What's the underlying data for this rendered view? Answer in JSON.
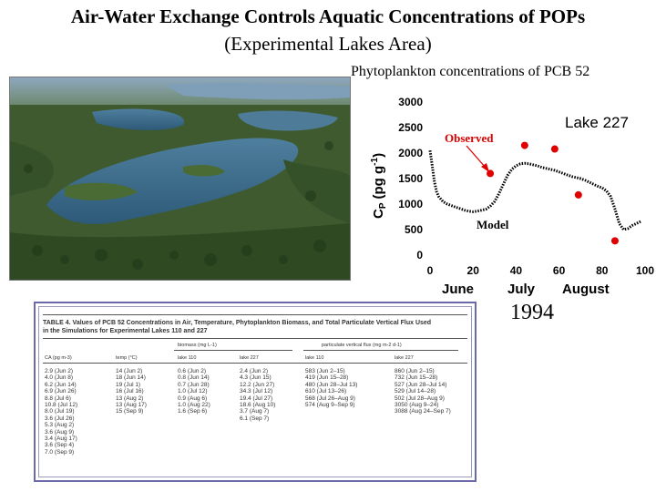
{
  "page": {
    "title": "Air-Water Exchange Controls Aquatic Concentrations of POPs",
    "subtitle": "(Experimental Lakes Area)"
  },
  "colors": {
    "accent_red": "#e00000",
    "table_border": "#6a6aa8"
  },
  "chart_data": {
    "type": "scatter",
    "caption": "Phytoplankton concentrations of PCB 52",
    "title": "Lake 227",
    "ylabel": "CP (pg g-1)",
    "ylabel_main": "C",
    "ylabel_sub": "P",
    "ylabel_unit": "(pg g",
    "ylabel_sup": "-1",
    "ylabel_close": ")",
    "xlim": [
      0,
      100
    ],
    "ylim": [
      0,
      3000
    ],
    "xticks": [
      "0",
      "20",
      "40",
      "60",
      "80",
      "100"
    ],
    "yticks": [
      "0",
      "500",
      "1000",
      "1500",
      "2000",
      "2500",
      "3000"
    ],
    "month_labels": [
      "June",
      "July",
      "August"
    ],
    "year_label": "1994",
    "annotations": {
      "observed": "Observed",
      "model": "Model"
    },
    "series": [
      {
        "name": "Observed",
        "marker": "circle",
        "x": [
          28,
          44,
          58,
          69,
          86
        ],
        "y": [
          1600,
          2150,
          2080,
          1180,
          280
        ]
      },
      {
        "name": "Model",
        "marker": "dotted-line",
        "x": [
          0,
          1,
          2,
          3,
          4,
          5,
          6,
          8,
          10,
          12,
          14,
          16,
          18,
          20,
          22,
          24,
          26,
          28,
          30,
          32,
          34,
          36,
          38,
          40,
          42,
          44,
          46,
          48,
          50,
          52,
          54,
          56,
          58,
          60,
          62,
          64,
          66,
          68,
          70,
          72,
          74,
          76,
          78,
          80,
          82,
          84,
          86,
          88,
          90,
          92,
          94,
          96,
          98
        ],
        "y": [
          2050,
          1750,
          1450,
          1250,
          1150,
          1100,
          1050,
          1000,
          970,
          940,
          910,
          880,
          860,
          850,
          860,
          880,
          900,
          960,
          1050,
          1200,
          1380,
          1560,
          1680,
          1750,
          1790,
          1800,
          1790,
          1770,
          1750,
          1720,
          1700,
          1680,
          1660,
          1630,
          1600,
          1570,
          1540,
          1520,
          1500,
          1470,
          1430,
          1390,
          1350,
          1320,
          1260,
          1150,
          900,
          620,
          500,
          520,
          580,
          620,
          660
        ]
      }
    ]
  },
  "table": {
    "caption_line1": "TABLE 4.  Values of PCB 52 Concentrations in Air, Temperature, Phytoplankton Biomass, and Total Particulate Vertical Flux Used",
    "caption_line2": "in the Simulations for Experimental Lakes 110 and 227",
    "group_biomass": "biomass (mg L-1)",
    "group_flux": "particulate vertical flux (mg m-2 d-1)",
    "headers": {
      "ca": "CA (pg m-3)",
      "temp": "temp (°C)",
      "lake110": "lake 110",
      "lake227": "lake 227",
      "flux110": "lake 110",
      "flux227": "lake 227"
    },
    "ca": [
      "2.9 (Jun 2)",
      "4.0 (Jun 8)",
      "6.2 (Jun 14)",
      "6.9 (Jun 26)",
      "8.8 (Jul 6)",
      "10.8 (Jul 12)",
      "8.0 (Jul 19)",
      "3.6 (Jul 26)",
      "5.3 (Aug 2)",
      "3.6 (Aug 9)",
      "3.4 (Aug 17)",
      "3.6 (Sep 4)",
      "7.0 (Sep 9)"
    ],
    "temp": [
      "14 (Jun 2)",
      "18 (Jun 14)",
      "19 (Jul 1)",
      "16 (Jul 16)",
      "13 (Aug 2)",
      "13 (Aug 17)",
      "15 (Sep 9)"
    ],
    "biomass110": [
      "0.6 (Jun 2)",
      "0.8 (Jun 14)",
      "0.7 (Jun 28)",
      "1.0 (Jul 12)",
      "0.9 (Aug 6)",
      "1.0 (Aug 22)",
      "1.6 (Sep 6)"
    ],
    "biomass227": [
      "2.4 (Jun 2)",
      "4.3 (Jun 15)",
      "12.2 (Jun 27)",
      "34.3 (Jul 12)",
      "19.4 (Jul 27)",
      "18.6 (Aug 10)",
      "3.7 (Aug 7)",
      "6.1 (Sep 7)"
    ],
    "flux110": [
      "583 (Jun 2–15)",
      "419 (Jun 15–28)",
      "480 (Jun 28–Jul 13)",
      "610 (Jul 13–26)",
      "568 (Jul 26–Aug 9)",
      "574 (Aug 9–Sep 9)"
    ],
    "flux227": [
      "860 (Jun 2–15)",
      "732 (Jun 15–28)",
      "527 (Jun 28–Jul 14)",
      "529 (Jul 14–28)",
      "502 (Jul 28–Aug 9)",
      "3050 (Aug 9–24)",
      "3088 (Aug 24–Sep 7)"
    ]
  }
}
